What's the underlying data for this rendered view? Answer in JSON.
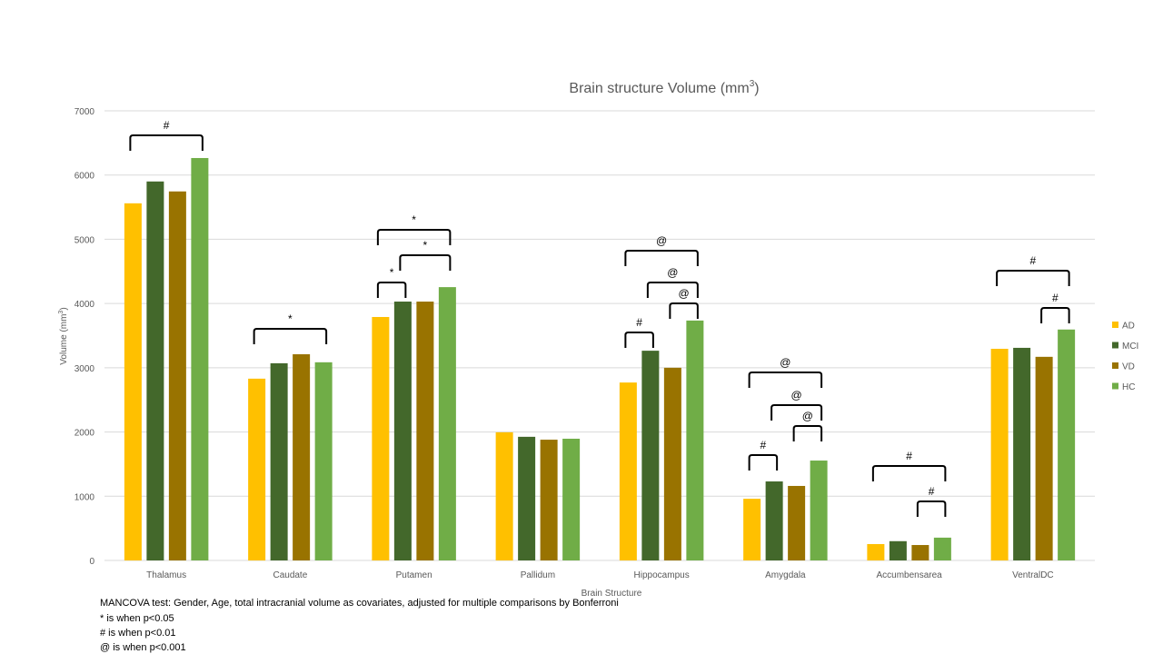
{
  "chart_data": {
    "type": "bar",
    "title": "Brain structure Volume (mm",
    "title_superscript": "3",
    "title_suffix": ")",
    "xlabel": "Brain Structure",
    "ylabel": "Volume  (mm",
    "ylabel_superscript": "3",
    "ylabel_suffix": ")",
    "ylim": [
      0,
      7000
    ],
    "yticks": [
      0,
      1000,
      2000,
      3000,
      4000,
      5000,
      6000,
      7000
    ],
    "grid": true,
    "legend_position": "right",
    "categories": [
      "Thalamus",
      "Caudate",
      "Putamen",
      "Pallidum",
      "Hippocampus",
      "Amygdala",
      "Accumbensarea",
      "VentralDC"
    ],
    "series": [
      {
        "name": "AD",
        "color": "#FFC000",
        "values": [
          5560,
          2830,
          3790,
          1995,
          2770,
          960,
          255,
          3295
        ]
      },
      {
        "name": "MCI",
        "color": "#43682B",
        "values": [
          5900,
          3070,
          4030,
          1925,
          3265,
          1230,
          300,
          3310
        ]
      },
      {
        "name": "VD",
        "color": "#997300",
        "values": [
          5745,
          3210,
          4030,
          1880,
          3000,
          1160,
          240,
          3170
        ]
      },
      {
        "name": "HC",
        "color": "#70AD47",
        "values": [
          6265,
          3085,
          4255,
          1895,
          3735,
          1555,
          355,
          3595
        ]
      }
    ],
    "significance_brackets": [
      {
        "category": "Thalamus",
        "from": "AD",
        "to": "HC",
        "label": "#"
      },
      {
        "category": "Caudate",
        "from": "AD",
        "to": "HC",
        "label": "*"
      },
      {
        "category": "Putamen",
        "from": "AD",
        "to": "HC",
        "label": "*"
      },
      {
        "category": "Putamen",
        "from": "MCI",
        "to": "HC",
        "label": "*"
      },
      {
        "category": "Putamen",
        "from": "AD",
        "to": "MCI",
        "label": "*"
      },
      {
        "category": "Hippocampus",
        "from": "AD",
        "to": "HC",
        "label": "@"
      },
      {
        "category": "Hippocampus",
        "from": "MCI",
        "to": "HC",
        "label": "@"
      },
      {
        "category": "Hippocampus",
        "from": "VD",
        "to": "HC",
        "label": "@"
      },
      {
        "category": "Hippocampus",
        "from": "AD",
        "to": "MCI",
        "label": "#"
      },
      {
        "category": "Amygdala",
        "from": "AD",
        "to": "HC",
        "label": "@"
      },
      {
        "category": "Amygdala",
        "from": "MCI",
        "to": "HC",
        "label": "@"
      },
      {
        "category": "Amygdala",
        "from": "VD",
        "to": "HC",
        "label": "@"
      },
      {
        "category": "Amygdala",
        "from": "AD",
        "to": "MCI",
        "label": "#"
      },
      {
        "category": "Accumbensarea",
        "from": "AD",
        "to": "HC",
        "label": "#"
      },
      {
        "category": "Accumbensarea",
        "from": "VD",
        "to": "HC",
        "label": "#"
      },
      {
        "category": "VentralDC",
        "from": "AD",
        "to": "HC",
        "label": "#"
      },
      {
        "category": "VentralDC",
        "from": "VD",
        "to": "HC",
        "label": "#"
      }
    ]
  },
  "notes": [
    "MANCOVA  test: Gender,  Age,  total intracranial volume as covariates, adjusted for multiple comparisons by Bonferroni",
    "*  is when p<0.05",
    "# is when p<0.01",
    "@ is when p<0.001"
  ]
}
